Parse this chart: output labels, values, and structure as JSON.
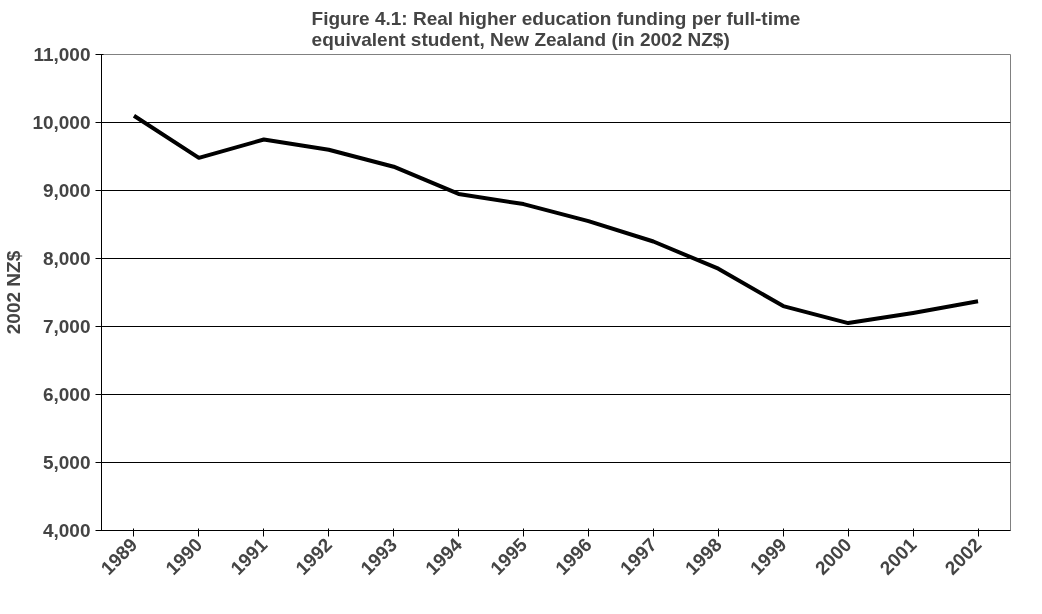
{
  "chart_data": {
    "type": "line",
    "title": "Figure 4.1: Real higher education funding per full-time equivalent student, New Zealand (in 2002 NZ$)",
    "ylabel": "2002 NZ$",
    "categories": [
      "1989",
      "1990",
      "1991",
      "1992",
      "1993",
      "1994",
      "1995",
      "1996",
      "1997",
      "1998",
      "1999",
      "2000",
      "2001",
      "2002"
    ],
    "series": [
      {
        "color": "#000000",
        "values": [
          10100,
          9480,
          9750,
          9600,
          9350,
          8950,
          8800,
          8550,
          8250,
          7850,
          7300,
          7050,
          7200,
          7370
        ]
      }
    ],
    "ylim": [
      4000,
      11000
    ],
    "yticks": [
      {
        "value": 4000,
        "label": "4,000"
      },
      {
        "value": 5000,
        "label": "5,000"
      },
      {
        "value": 6000,
        "label": "6,000"
      },
      {
        "value": 7000,
        "label": "7,000"
      },
      {
        "value": 8000,
        "label": "8,000"
      },
      {
        "value": 9000,
        "label": "9,000"
      },
      {
        "value": 10000,
        "label": "10,000"
      },
      {
        "value": 11000,
        "label": "11,000"
      }
    ],
    "grid": "y",
    "marker": "none",
    "line_style": "solid"
  }
}
